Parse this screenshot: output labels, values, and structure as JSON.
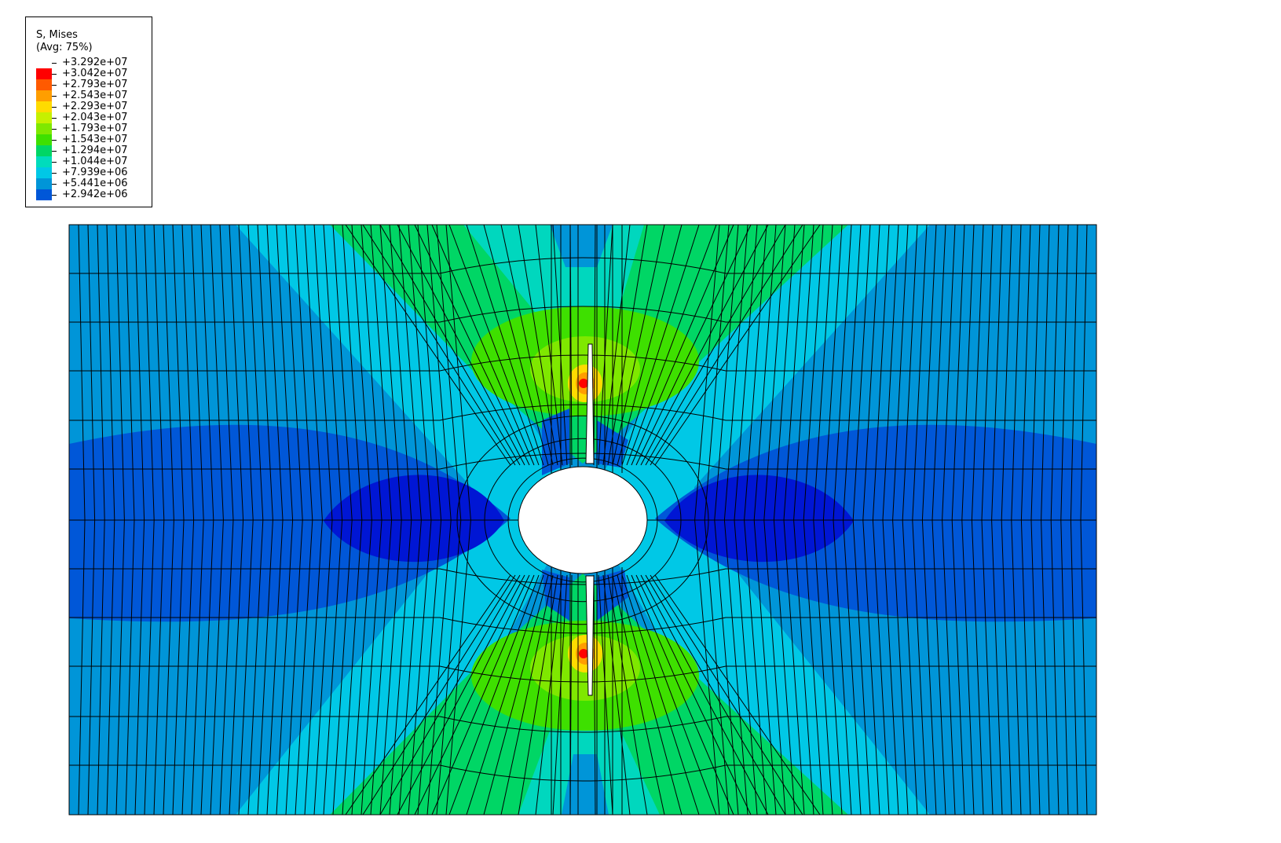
{
  "legend": {
    "title": "S, Mises",
    "subtitle": "(Avg: 75%)",
    "entries": [
      {
        "label": "+3.292e+07",
        "color": "#ff0000"
      },
      {
        "label": "+3.042e+07",
        "color": "#ff5a00"
      },
      {
        "label": "+2.793e+07",
        "color": "#ff9e00"
      },
      {
        "label": "+2.543e+07",
        "color": "#ffdb00"
      },
      {
        "label": "+2.293e+07",
        "color": "#c6f000"
      },
      {
        "label": "+2.043e+07",
        "color": "#7fe800"
      },
      {
        "label": "+1.793e+07",
        "color": "#3ee000"
      },
      {
        "label": "+1.543e+07",
        "color": "#00d665"
      },
      {
        "label": "+1.294e+07",
        "color": "#00dcbc"
      },
      {
        "label": "+1.044e+07",
        "color": "#00c8e6"
      },
      {
        "label": "+7.939e+06",
        "color": "#0095d8"
      },
      {
        "label": "+5.441e+06",
        "color": "#0057d8"
      },
      {
        "label": "+2.942e+06",
        "color": "#0016d4"
      }
    ]
  },
  "model": {
    "description_colors": {
      "deep_blue": "#0016d4",
      "blue": "#0057d8",
      "mid_blue": "#0095d8",
      "cyan": "#00c8e6",
      "teal": "#00d7be",
      "green_teal": "#00d665",
      "green": "#3ee000",
      "lime": "#7fe800",
      "yellow": "#ffdb00",
      "orange": "#ff9e00",
      "red": "#ff0000"
    }
  }
}
